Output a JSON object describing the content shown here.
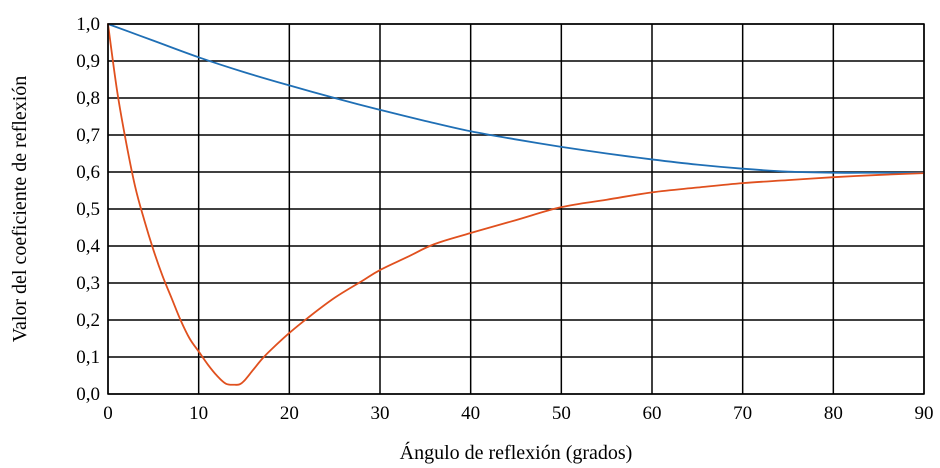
{
  "chart_data": {
    "type": "line",
    "title": "",
    "xlabel": "Ángulo de reflexión (grados)",
    "ylabel": "Valor del coeficiente de reflexión",
    "xlim": [
      0,
      90
    ],
    "ylim": [
      0.0,
      1.0
    ],
    "x_ticks": [
      0,
      10,
      20,
      30,
      40,
      50,
      60,
      70,
      80,
      90
    ],
    "x_tick_labels": [
      "0",
      "10",
      "20",
      "30",
      "40",
      "50",
      "60",
      "70",
      "80",
      "90"
    ],
    "y_ticks": [
      0.0,
      0.1,
      0.2,
      0.3,
      0.4,
      0.5,
      0.6,
      0.7,
      0.8,
      0.9,
      1.0
    ],
    "y_tick_labels": [
      "0,0",
      "0,1",
      "0,2",
      "0,3",
      "0,4",
      "0,5",
      "0,6",
      "0,7",
      "0,8",
      "0,9",
      "1,0"
    ],
    "grid": true,
    "legend": "none",
    "series": [
      {
        "color": "#1f6fb5",
        "x": [
          0,
          5,
          10,
          15,
          20,
          25,
          30,
          35,
          40,
          45,
          50,
          55,
          60,
          65,
          70,
          75,
          80,
          85,
          90
        ],
        "y": [
          1.0,
          0.955,
          0.91,
          0.87,
          0.834,
          0.8,
          0.768,
          0.738,
          0.71,
          0.688,
          0.668,
          0.65,
          0.634,
          0.62,
          0.609,
          0.601,
          0.598,
          0.598,
          0.598
        ]
      },
      {
        "color": "#e0501e",
        "x": [
          0,
          1,
          2,
          3,
          4,
          5,
          6,
          7,
          8,
          9,
          10,
          11,
          12,
          13,
          14,
          14.5,
          15,
          16,
          17,
          18,
          20,
          22,
          25,
          28,
          30,
          33,
          36,
          40,
          45,
          50,
          55,
          60,
          65,
          70,
          75,
          80,
          85,
          90
        ],
        "y": [
          1.0,
          0.82,
          0.68,
          0.56,
          0.47,
          0.39,
          0.32,
          0.26,
          0.2,
          0.15,
          0.115,
          0.08,
          0.05,
          0.028,
          0.025,
          0.026,
          0.035,
          0.065,
          0.095,
          0.12,
          0.165,
          0.205,
          0.26,
          0.305,
          0.335,
          0.37,
          0.405,
          0.435,
          0.47,
          0.505,
          0.525,
          0.545,
          0.558,
          0.57,
          0.578,
          0.586,
          0.592,
          0.597
        ]
      }
    ]
  }
}
